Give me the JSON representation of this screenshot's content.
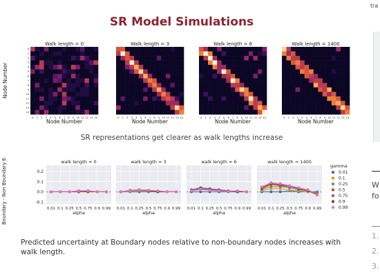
{
  "slide": {
    "title": "SR Model Simulations",
    "caption_top": "SR representations get clearer as walk lengths increase",
    "caption_bottom": "Predicted uncertainty at Boundary nodes relative to non-boundary nodes increases with walk length."
  },
  "heatmaps": {
    "titles": [
      "Walk length = 0",
      "Walk length = 3",
      "Walk length = 6",
      "Walk length = 1400"
    ],
    "xlabel": "Node Number",
    "ylabel": "Node Number",
    "ticks": [
      "0",
      "1",
      "2",
      "3",
      "4",
      "5",
      "6",
      "7",
      "8",
      "9",
      "10",
      "11",
      "12",
      "13",
      "14"
    ]
  },
  "chart_data": {
    "type": "line",
    "panels": [
      "walk length = 0",
      "walk length = 3",
      "walk length = 6",
      "walk length = 1400"
    ],
    "xlabel": "alpha",
    "ylabel": "Boundary - Non Boundary Entropy",
    "x": [
      "0.01",
      "0.1",
      "0.25",
      "0.5",
      "0.75",
      "0.9",
      "0.99"
    ],
    "ylim": [
      -0.1,
      0.25
    ],
    "yticks": [
      "0.2",
      "0.1",
      "0.0",
      "-0.1"
    ],
    "legend_title": "gamma",
    "grid": true,
    "legend_placement": "right",
    "series": [
      {
        "name": "0.01",
        "color": "#3b6fb6",
        "panels": [
          [
            0,
            0,
            0,
            0,
            0,
            0,
            0
          ],
          [
            0,
            0,
            0,
            0,
            0,
            0,
            0
          ],
          [
            0,
            0,
            0,
            0,
            0,
            0,
            0
          ],
          [
            0,
            0,
            0,
            0.01,
            0,
            0,
            0
          ]
        ]
      },
      {
        "name": "0.1",
        "color": "#f28e2b",
        "panels": [
          [
            0,
            0,
            0,
            0,
            0,
            0,
            0
          ],
          [
            0,
            0.005,
            0.01,
            0.005,
            0,
            0,
            0
          ],
          [
            0.01,
            0.02,
            0.015,
            0.01,
            0.005,
            0,
            0
          ],
          [
            0.01,
            0.03,
            0.03,
            0.02,
            0.01,
            0,
            -0.01
          ]
        ]
      },
      {
        "name": "0.25",
        "color": "#59a14f",
        "panels": [
          [
            0,
            0,
            0,
            0,
            0,
            0,
            0
          ],
          [
            0,
            0.01,
            0.015,
            0.01,
            0,
            0,
            0
          ],
          [
            0.02,
            0.03,
            0.02,
            0.015,
            0.005,
            0,
            0
          ],
          [
            0.02,
            0.05,
            0.05,
            0.04,
            0.02,
            0.01,
            -0.01
          ]
        ]
      },
      {
        "name": "0.5",
        "color": "#d4433a",
        "panels": [
          [
            0,
            0,
            0,
            0,
            0,
            0,
            0
          ],
          [
            0,
            0.01,
            0.02,
            0.01,
            0.005,
            0,
            0
          ],
          [
            0.02,
            0.04,
            0.03,
            0.02,
            0.01,
            0,
            0
          ],
          [
            0.03,
            0.07,
            0.06,
            0.05,
            0.03,
            0.01,
            -0.02
          ]
        ]
      },
      {
        "name": "0.75",
        "color": "#8c5bb0",
        "panels": [
          [
            0,
            0,
            0,
            0,
            0.01,
            0,
            0
          ],
          [
            0,
            0.015,
            0.02,
            0.015,
            0.005,
            0,
            0
          ],
          [
            0.02,
            0.04,
            0.03,
            0.02,
            0.01,
            0,
            0
          ],
          [
            0.04,
            0.08,
            0.07,
            0.05,
            0.03,
            0.01,
            -0.03
          ]
        ]
      },
      {
        "name": "0.9",
        "color": "#7a4a2e",
        "panels": [
          [
            0,
            0,
            0,
            0.01,
            0.005,
            0,
            0
          ],
          [
            0,
            0.01,
            0.02,
            0.01,
            0,
            0,
            0
          ],
          [
            0.01,
            0.03,
            0.02,
            0.015,
            0.005,
            0,
            0
          ],
          [
            0.04,
            0.08,
            0.07,
            0.06,
            0.03,
            0.01,
            -0.03
          ]
        ]
      },
      {
        "name": "0.99",
        "color": "#e377c2",
        "panels": [
          [
            0,
            0,
            0,
            0.01,
            0.01,
            0,
            0
          ],
          [
            0,
            0.01,
            0.02,
            0.015,
            0.01,
            0,
            0
          ],
          [
            0.01,
            0.025,
            0.015,
            0.01,
            0.005,
            0.01,
            0
          ],
          [
            0.05,
            0.09,
            0.08,
            0.06,
            0.04,
            0.02,
            -0.03
          ]
        ]
      }
    ]
  },
  "sidebar": {
    "top_text": "tra",
    "mid_text_1": "W",
    "mid_text_2": "fo",
    "list": [
      "1.",
      "2.",
      "3."
    ]
  }
}
